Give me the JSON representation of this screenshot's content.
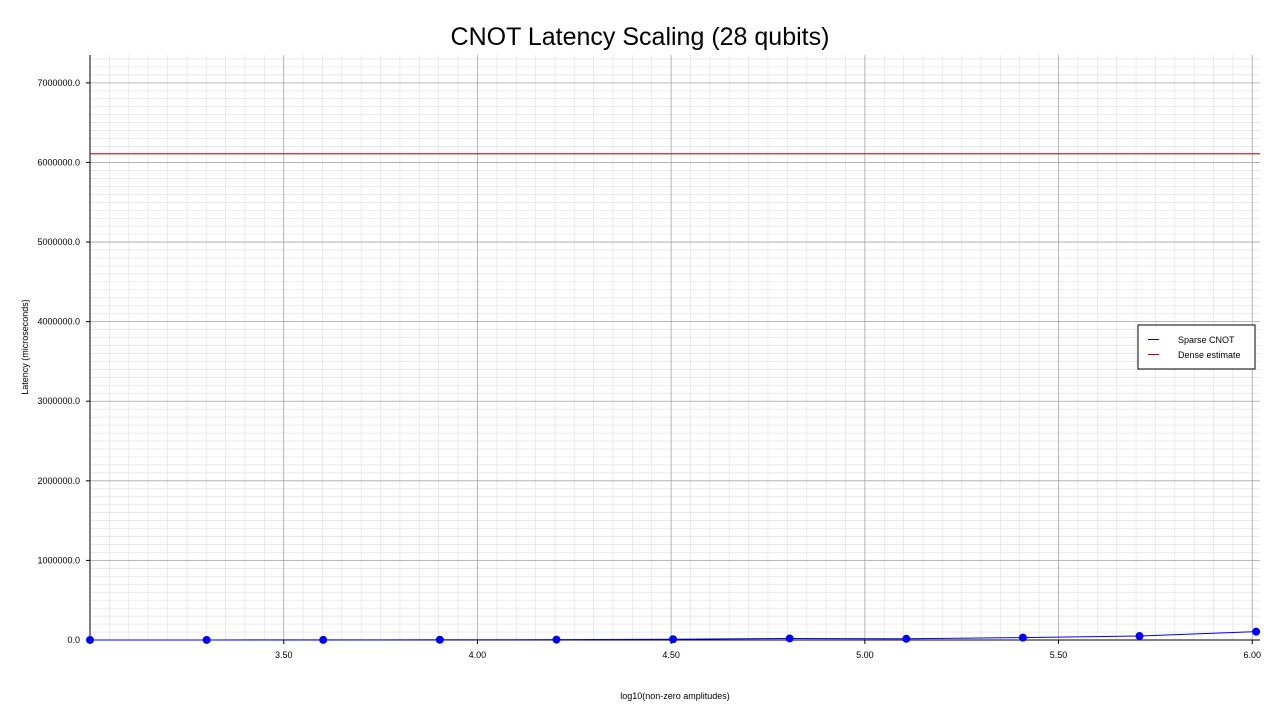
{
  "chart_data": {
    "type": "line",
    "title": "CNOT Latency Scaling (28 qubits)",
    "xlabel": "log10(non-zero amplitudes)",
    "ylabel": "Latency (microseconds)",
    "xlim": [
      3.0,
      6.02
    ],
    "ylim": [
      0,
      7350000
    ],
    "x_ticks": [
      3.5,
      4.0,
      4.5,
      5.0,
      5.5,
      6.0
    ],
    "x_tick_labels": [
      "3.50",
      "4.00",
      "4.50",
      "5.00",
      "5.50",
      "6.00"
    ],
    "y_ticks": [
      0,
      1000000,
      2000000,
      3000000,
      4000000,
      5000000,
      6000000,
      7000000
    ],
    "y_tick_labels": [
      "0.0",
      "1000000.0",
      "2000000.0",
      "3000000.0",
      "4000000.0",
      "5000000.0",
      "6000000.0",
      "7000000.0"
    ],
    "grid": true,
    "legend_position": "center-right",
    "series": [
      {
        "name": "Sparse CNOT",
        "type": "line",
        "color": "#0000ff",
        "markers": true,
        "x": [
          3.0,
          3.301,
          3.602,
          3.903,
          4.204,
          4.505,
          4.806,
          5.107,
          5.408,
          5.709,
          6.01
        ],
        "y": [
          300,
          600,
          1200,
          2400,
          4800,
          9600,
          19200,
          15000,
          30000,
          50000,
          105000
        ]
      },
      {
        "name": "Dense estimate",
        "type": "hline",
        "color": "#cc0000",
        "y": 6110000
      }
    ]
  }
}
